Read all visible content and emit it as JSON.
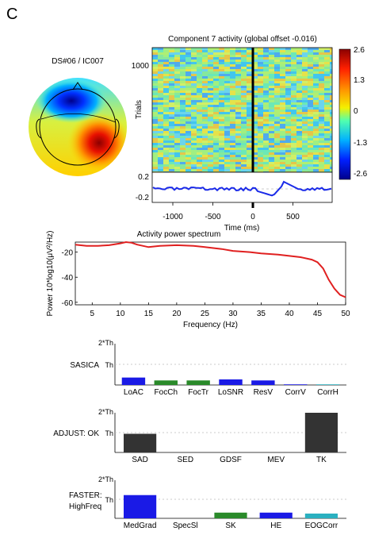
{
  "panel_label": "C",
  "topomap": {
    "title": "DS#06 / IC007"
  },
  "erpimage": {
    "title": "Component 7 activity (global offset -0.016)",
    "ylabel": "Trials",
    "ytick": "1000",
    "colorbar_ticks": [
      "2.6",
      "1.3",
      "0",
      "-1.3",
      "-2.6"
    ],
    "trace_ticks": [
      "0.2",
      "-0.2"
    ],
    "xticks": [
      "-1000",
      "-500",
      "0",
      "500"
    ],
    "xlabel": "Time (ms)"
  },
  "chart_data": [
    {
      "type": "line",
      "title": "Activity power spectrum",
      "xlabel": "Frequency (Hz)",
      "ylabel": "Power 10*log10(μV²/Hz)",
      "xlim": [
        2,
        50
      ],
      "ylim": [
        -62,
        -12
      ],
      "xticks": [
        5,
        10,
        15,
        20,
        25,
        30,
        35,
        40,
        45,
        50
      ],
      "yticks": [
        -20,
        -40,
        -60
      ],
      "color": "#e02020",
      "x": [
        2,
        4,
        6,
        8,
        10,
        11,
        12,
        13,
        15,
        17,
        20,
        23,
        25,
        28,
        30,
        33,
        35,
        38,
        40,
        42,
        44,
        45,
        46,
        47,
        48,
        49,
        50
      ],
      "y": [
        -14,
        -15,
        -15,
        -14.5,
        -13,
        -12,
        -12.5,
        -14,
        -16,
        -15,
        -14.5,
        -15,
        -16,
        -17.5,
        -19,
        -20,
        -21,
        -22,
        -23,
        -24,
        -26,
        -28,
        -33,
        -42,
        -49,
        -54,
        -56
      ]
    },
    {
      "type": "bar",
      "label": "SASICA",
      "levels": [
        "2*Th",
        "Th"
      ],
      "categories": [
        "LoAC",
        "FocCh",
        "FocTr",
        "LoSNR",
        "ResV",
        "CorrV",
        "CorrH"
      ],
      "values": [
        0.36,
        0.22,
        0.22,
        0.27,
        0.22,
        0.03,
        0.03
      ],
      "colors": [
        "#1a1ae6",
        "#2a8a2a",
        "#2a8a2a",
        "#1a1ae6",
        "#1a1ae6",
        "#1a1ae6",
        "#2ab0c0"
      ]
    },
    {
      "type": "bar",
      "label": "ADJUST: OK",
      "levels": [
        "2*Th",
        "Th"
      ],
      "categories": [
        "SAD",
        "SED",
        "GDSF",
        "MEV",
        "TK"
      ],
      "values": [
        0.94,
        0,
        0,
        0,
        2.0
      ],
      "colors": [
        "#333333",
        "#333333",
        "#333333",
        "#333333",
        "#333333"
      ]
    },
    {
      "type": "bar",
      "label_lines": [
        "FASTER:",
        "HighFreq"
      ],
      "levels": [
        "2*Th",
        "Th"
      ],
      "categories": [
        "MedGrad",
        "SpecSl",
        "SK",
        "HE",
        "EOGCorr"
      ],
      "values": [
        1.22,
        0,
        0.3,
        0.3,
        0.25
      ],
      "colors": [
        "#1a1ae6",
        "#1a1ae6",
        "#2a8a2a",
        "#1a1ae6",
        "#2ab0c0"
      ]
    }
  ]
}
